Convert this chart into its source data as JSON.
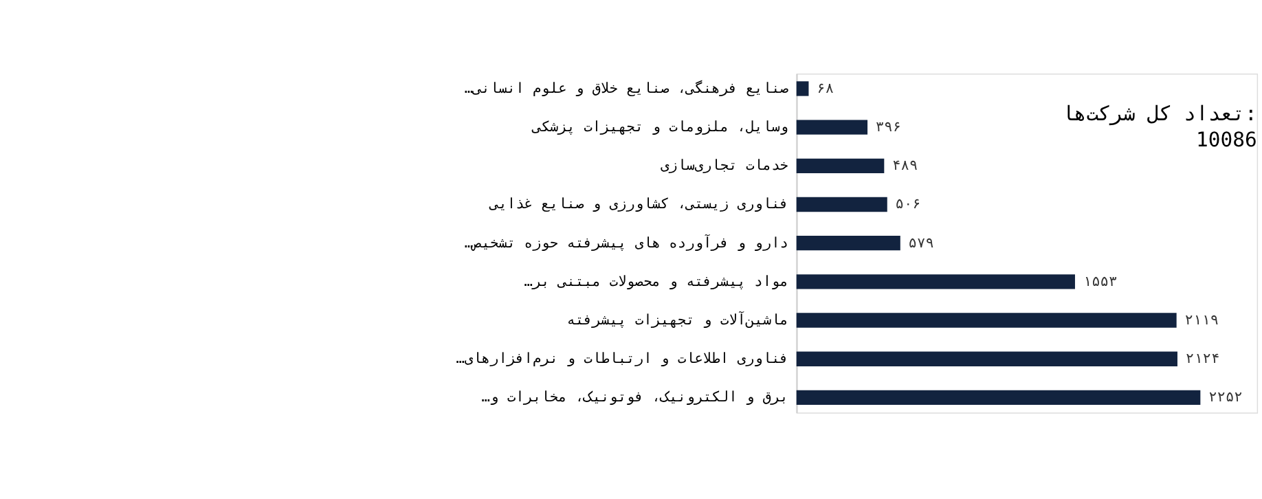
{
  "chart_data": {
    "type": "bar",
    "orientation": "horizontal",
    "categories": [
      "صنایع فرهنگی، صنایع خلاق و علوم انسانی…",
      "وسایل، ملزومات و تجهیزات پزشکی",
      "خدمات تجاری‌سازی",
      "فناوری زیستی، کشاورزی و صنایع غذایی",
      "دارو و فرآورده های پیشرفته حوزه تشخیص…",
      "مواد پیشرفته و محصولات مبتنی بر…",
      "ماشین‌آلات و تجهیزات پیشرفته",
      "فناوری اطلاعات و ارتباطات و نرم‌افزارهای…",
      "برق و الکترونیک، فوتونیک، مخابرات و…"
    ],
    "values": [
      68,
      396,
      489,
      506,
      579,
      1553,
      2119,
      2124,
      2252
    ],
    "value_labels": [
      "۶۸",
      "۳۹۶",
      "۴۸۹",
      "۵۰۶",
      "۵۷۹",
      "۱۵۵۳",
      "۲۱۱۹",
      "۲۱۲۴",
      "۲۲۵۲"
    ],
    "color": "#12233f",
    "annotations": [
      "تعداد کل شرکت‌ها:\n10086"
    ],
    "grid": false
  }
}
